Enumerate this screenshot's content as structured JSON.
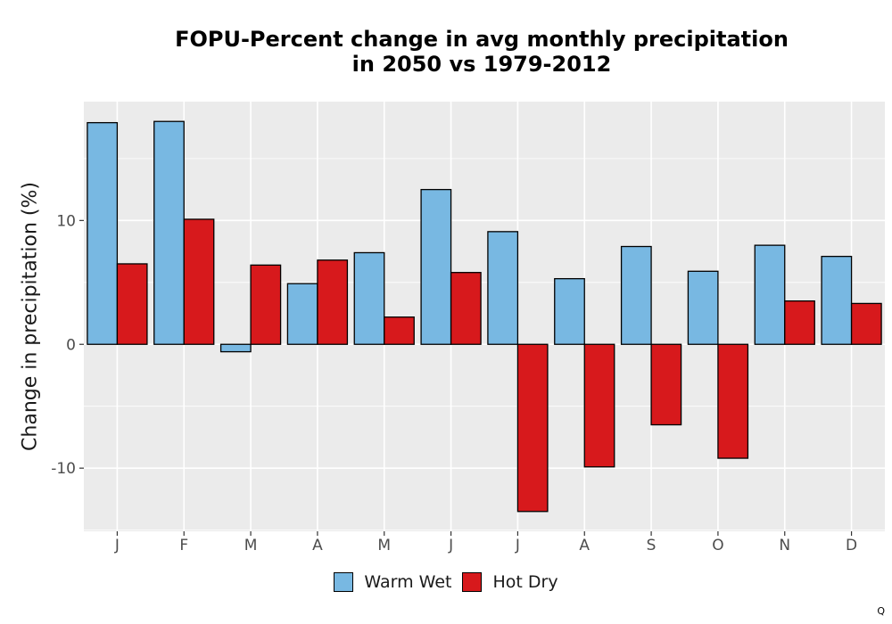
{
  "chart_data": {
    "type": "bar",
    "title": "FOPU-Percent change in avg monthly precipitation\nin 2050 vs 1979-2012",
    "xlabel": "",
    "ylabel": "Change in precipitation (%)",
    "categories": [
      "J",
      "F",
      "M",
      "A",
      "M",
      "J",
      "J",
      "A",
      "S",
      "O",
      "N",
      "D"
    ],
    "series": [
      {
        "name": "Warm Wet",
        "color": "#78b8e2",
        "values": [
          17.9,
          18.0,
          -0.6,
          4.9,
          7.4,
          12.5,
          9.1,
          5.3,
          7.9,
          5.9,
          8.0,
          7.1
        ]
      },
      {
        "name": "Hot Dry",
        "color": "#d7191c",
        "values": [
          6.5,
          10.1,
          6.4,
          6.8,
          2.2,
          5.8,
          -13.5,
          -9.9,
          -6.5,
          -9.2,
          3.5,
          3.3
        ]
      }
    ],
    "ylim": [
      -15.1,
      19.6
    ],
    "yticks": [
      -10,
      0,
      10
    ],
    "grid": true,
    "legend_position": "bottom"
  },
  "corner_mark": "Q"
}
